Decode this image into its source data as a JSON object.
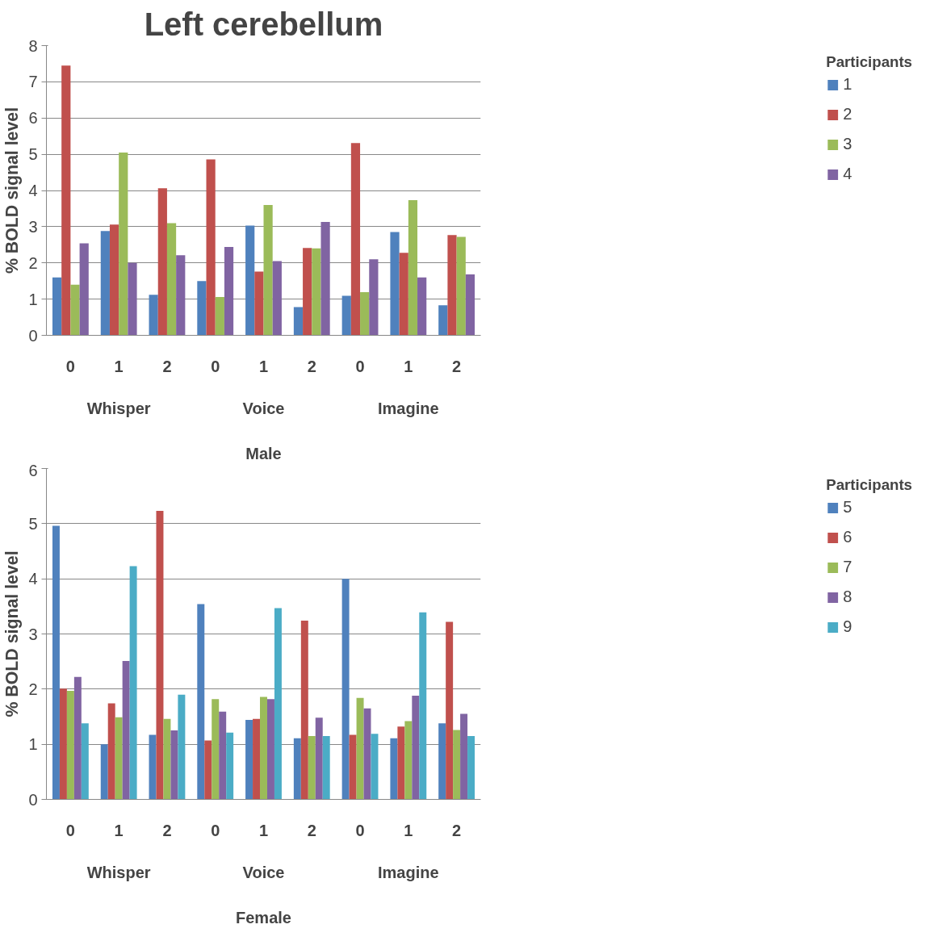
{
  "chart_data": [
    {
      "type": "bar",
      "title": "Left cerebellum",
      "ylabel": "% BOLD signal level",
      "categories": [
        "0",
        "1",
        "2",
        "0",
        "1",
        "2",
        "0",
        "1",
        "2"
      ],
      "legend_title": "Participants",
      "legend": "right",
      "grid": "y",
      "ylim": [
        0,
        8
      ],
      "yticks": [
        0,
        1,
        2,
        3,
        4,
        5,
        6,
        7,
        8
      ],
      "annotations": [
        "Whisper",
        "Voice",
        "Imagine",
        "Male"
      ],
      "series": [
        {
          "name": "1",
          "color": "#4f81bd",
          "values": [
            1.6,
            2.88,
            1.12,
            1.5,
            3.03,
            0.78,
            1.09,
            2.85,
            0.83
          ]
        },
        {
          "name": "2",
          "color": "#c0504d",
          "values": [
            7.45,
            3.06,
            4.06,
            4.86,
            1.76,
            2.41,
            5.31,
            2.28,
            2.77
          ]
        },
        {
          "name": "3",
          "color": "#9bbb59",
          "values": [
            1.4,
            5.05,
            3.1,
            1.06,
            3.6,
            2.4,
            1.19,
            3.73,
            2.72
          ]
        },
        {
          "name": "4",
          "color": "#8064a2",
          "values": [
            2.54,
            2.0,
            2.21,
            2.44,
            2.05,
            3.13,
            2.1,
            1.6,
            1.68
          ]
        }
      ]
    },
    {
      "type": "bar",
      "ylabel": "% BOLD signal level",
      "categories": [
        "0",
        "1",
        "2",
        "0",
        "1",
        "2",
        "0",
        "1",
        "2"
      ],
      "legend_title": "Participants",
      "legend": "right",
      "grid": "y",
      "ylim": [
        0,
        6
      ],
      "yticks": [
        0,
        1,
        2,
        3,
        4,
        5,
        6
      ],
      "annotations": [
        "Whisper",
        "Voice",
        "Imagine",
        "Female"
      ],
      "series": [
        {
          "name": "5",
          "color": "#4f81bd",
          "values": [
            4.96,
            1.0,
            1.17,
            3.54,
            1.44,
            1.11,
            4.0,
            1.11,
            1.38
          ]
        },
        {
          "name": "6",
          "color": "#c0504d",
          "values": [
            2.01,
            1.74,
            5.23,
            1.07,
            1.46,
            3.24,
            1.17,
            1.32,
            3.22
          ]
        },
        {
          "name": "7",
          "color": "#9bbb59",
          "values": [
            1.97,
            1.49,
            1.46,
            1.82,
            1.86,
            1.15,
            1.84,
            1.42,
            1.26
          ]
        },
        {
          "name": "8",
          "color": "#8064a2",
          "values": [
            2.22,
            2.51,
            1.25,
            1.59,
            1.82,
            1.48,
            1.65,
            1.88,
            1.55
          ]
        },
        {
          "name": "9",
          "color": "#4bacc6",
          "values": [
            1.38,
            4.23,
            1.9,
            1.21,
            3.47,
            1.15,
            1.19,
            3.39,
            1.15
          ]
        }
      ]
    }
  ]
}
